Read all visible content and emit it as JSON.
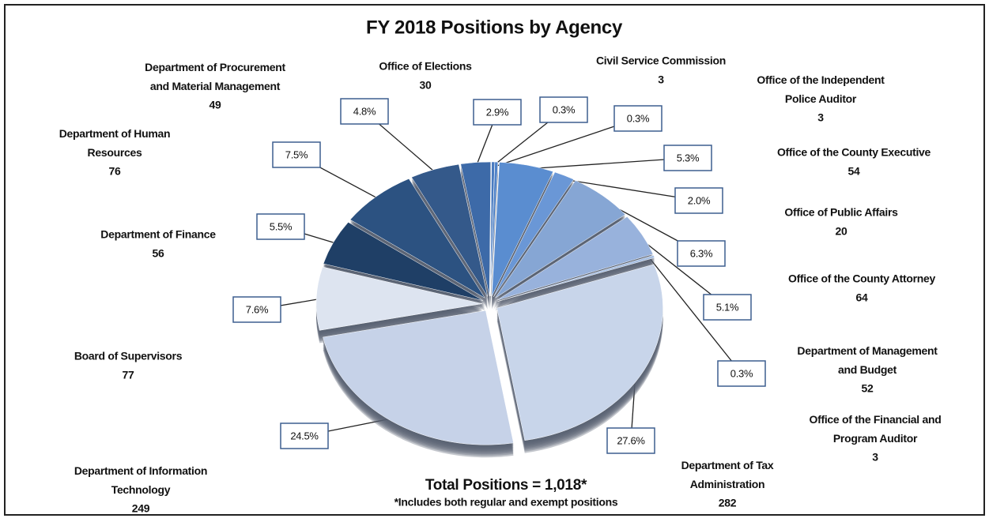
{
  "chart_data": {
    "type": "pie",
    "title": "FY 2018 Positions by Agency",
    "categories": [
      "Office of Elections",
      "Civil Service Commission",
      "Office of the Independent\nPolice Auditor",
      "Office of the County Executive",
      "Office of Public Affairs",
      "Office of the County Attorney",
      "Department of Management\nand Budget",
      "Office of the Financial and\nProgram Auditor",
      "Department of Tax\nAdministration",
      "Department of Information\nTechnology",
      "Board of Supervisors",
      "Department of Finance",
      "Department of Human\nResources",
      "Department of Procurement\nand Material Management"
    ],
    "values": [
      2.9,
      0.3,
      0.3,
      5.3,
      2.0,
      6.3,
      5.1,
      0.3,
      27.6,
      24.5,
      7.6,
      5.5,
      7.5,
      4.8
    ],
    "value_labels": [
      "2.9%",
      "0.3%",
      "0.3%",
      "5.3%",
      "2.0%",
      "6.3%",
      "5.1%",
      "0.3%",
      "27.6%",
      "24.5%",
      "7.6%",
      "5.5%",
      "7.5%",
      "4.8%"
    ],
    "counts": [
      30,
      3,
      3,
      54,
      20,
      64,
      52,
      3,
      282,
      249,
      77,
      56,
      76,
      49
    ],
    "colors": [
      "#3d6aa8",
      "#4a7bc0",
      "#4f82c8",
      "#5a8dd0",
      "#6a97d6",
      "#86a6d4",
      "#98b2dc",
      "#a7bfe2",
      "#c8d5ea",
      "#c6d2e8",
      "#dde4f0",
      "#1f3f66",
      "#2c5281",
      "#34598a"
    ],
    "total": "Total Positions = 1,018*",
    "note": "*Includes both regular and exempt positions"
  }
}
